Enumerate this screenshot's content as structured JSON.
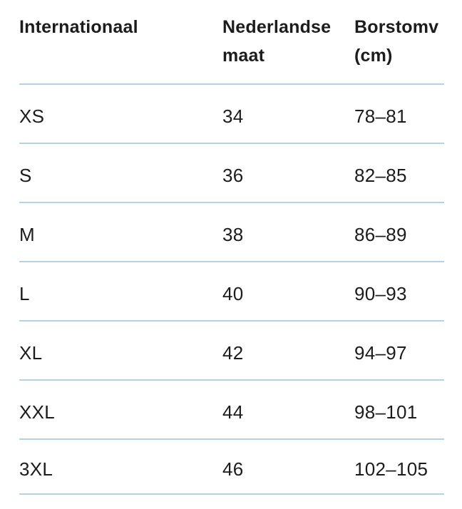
{
  "table": {
    "header": {
      "columns": [
        {
          "line1": "Internationaal",
          "line2": ""
        },
        {
          "line1": "Nederlandse",
          "line2": "maat"
        },
        {
          "line1": "Borstomv",
          "line2": "(cm)"
        }
      ]
    },
    "rows": [
      [
        "XS",
        "34",
        "78–81"
      ],
      [
        "S",
        "36",
        "82–85"
      ],
      [
        "M",
        "38",
        "86–89"
      ],
      [
        "L",
        "40",
        "90–93"
      ],
      [
        "XL",
        "42",
        "94–97"
      ],
      [
        "XXL",
        "44",
        "98–101"
      ],
      [
        "3XL",
        "46",
        "102–105"
      ]
    ]
  },
  "colors": {
    "divider": "#b7d1e4",
    "text": "#1c1c1c",
    "background": "#ffffff"
  }
}
